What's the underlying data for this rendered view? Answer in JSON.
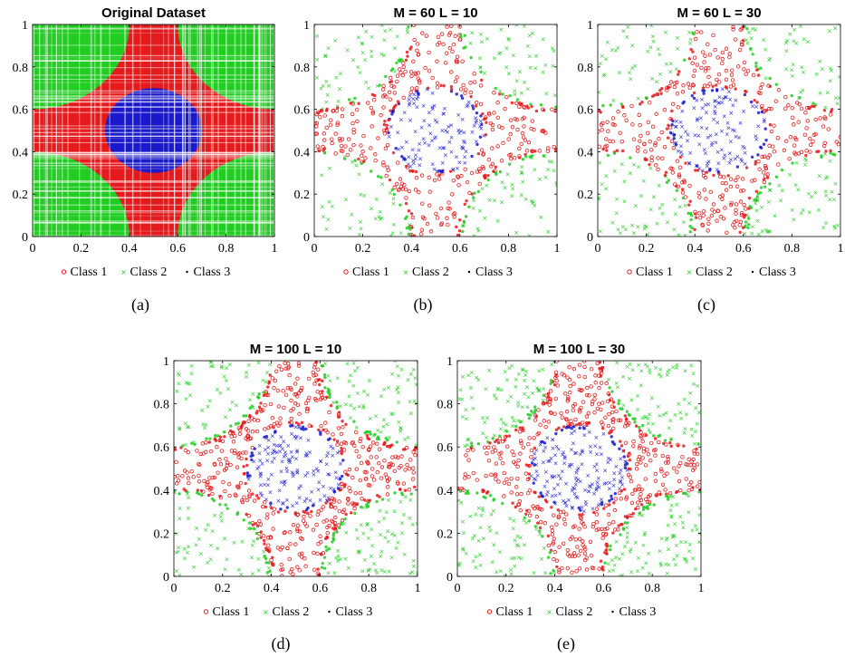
{
  "colors": {
    "class1": "#e41a1c",
    "class2": "#22cc22",
    "class3": "#1a1acc"
  },
  "chart_data": [
    {
      "type": "scatter",
      "id": "a",
      "title": "Original Dataset",
      "caption": "(a)",
      "xlim": [
        0,
        1
      ],
      "ylim": [
        0,
        1
      ],
      "style": "dense",
      "xticks": [
        "0",
        "0.2",
        "0.4",
        "0.6",
        "0.8",
        "1"
      ],
      "yticks": [
        "0",
        "0.2",
        "0.4",
        "0.6",
        "0.8",
        "1"
      ],
      "legend": [
        "Class 1",
        "Class 2",
        "Class 3"
      ],
      "regions": {
        "circle_center": [
          0.5,
          0.5
        ],
        "circle_radius": 0.2,
        "corner_radius": 0.4
      }
    },
    {
      "type": "scatter",
      "id": "b",
      "title": "M = 60 L = 10",
      "caption": "(b)",
      "xlim": [
        0,
        1
      ],
      "ylim": [
        0,
        1
      ],
      "style": "sparse",
      "xticks": [
        "0",
        "0.2",
        "0.4",
        "0.6",
        "0.8",
        "1"
      ],
      "yticks": [
        "0",
        "0.2",
        "0.4",
        "0.6",
        "0.8",
        "1"
      ],
      "legend": [
        "Class 1",
        "Class 2",
        "Class 3"
      ],
      "regions": {
        "circle_center": [
          0.5,
          0.5
        ],
        "circle_radius": 0.2,
        "corner_radius": 0.4
      }
    },
    {
      "type": "scatter",
      "id": "c",
      "title": "M = 60 L = 30",
      "caption": "(c)",
      "xlim": [
        0,
        1
      ],
      "ylim": [
        0,
        1
      ],
      "style": "sparse",
      "xticks": [
        "0",
        "0.2",
        "0.4",
        "0.6",
        "0.8",
        "1"
      ],
      "yticks": [
        "0",
        "0.2",
        "0.4",
        "0.6",
        "0.8",
        "1"
      ],
      "legend": [
        "Class 1",
        "Class 2",
        "Class 3"
      ],
      "regions": {
        "circle_center": [
          0.5,
          0.5
        ],
        "circle_radius": 0.2,
        "corner_radius": 0.4
      }
    },
    {
      "type": "scatter",
      "id": "d",
      "title": "M = 100 L = 10",
      "caption": "(d)",
      "xlim": [
        0,
        1
      ],
      "ylim": [
        0,
        1
      ],
      "style": "sparse",
      "xticks": [
        "0",
        "0.2",
        "0.4",
        "0.6",
        "0.8",
        "1"
      ],
      "yticks": [
        "0",
        "0.2",
        "0.4",
        "0.6",
        "0.8",
        "1"
      ],
      "legend": [
        "Class 1",
        "Class 2",
        "Class 3"
      ],
      "regions": {
        "circle_center": [
          0.5,
          0.5
        ],
        "circle_radius": 0.2,
        "corner_radius": 0.4
      }
    },
    {
      "type": "scatter",
      "id": "e",
      "title": "M = 100 L = 30",
      "caption": "(e)",
      "xlim": [
        0,
        1
      ],
      "ylim": [
        0,
        1
      ],
      "style": "sparse",
      "xticks": [
        "0",
        "0.2",
        "0.4",
        "0.6",
        "0.8",
        "1"
      ],
      "yticks": [
        "0",
        "0.2",
        "0.4",
        "0.6",
        "0.8",
        "1"
      ],
      "legend": [
        "Class 1",
        "Class 2",
        "Class 3"
      ],
      "regions": {
        "circle_center": [
          0.5,
          0.5
        ],
        "circle_radius": 0.2,
        "corner_radius": 0.4
      }
    }
  ]
}
